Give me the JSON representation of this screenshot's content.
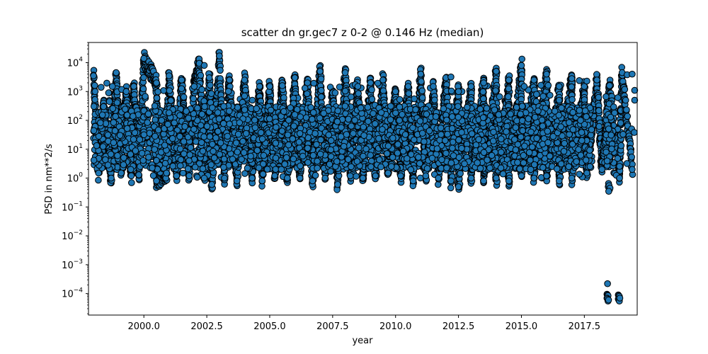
{
  "chart_data": {
    "type": "scatter",
    "title": "scatter dn gr.gec7 z 0-2 @ 0.146 Hz (median)",
    "xlabel": "year",
    "ylabel": "PSD in nm**2/s",
    "xlim": [
      1997.8,
      2019.6
    ],
    "ylim": [
      1.8e-05,
      50000
    ],
    "yscale": "log",
    "grid": false,
    "legend": "none",
    "x_ticks": [
      2000.0,
      2002.5,
      2005.0,
      2007.5,
      2010.0,
      2012.5,
      2015.0,
      2017.5
    ],
    "x_tick_labels": [
      "2000.0",
      "2002.5",
      "2005.0",
      "2007.5",
      "2010.0",
      "2012.5",
      "2015.0",
      "2017.5"
    ],
    "y_ticks": [
      0.0001,
      0.001,
      0.01,
      0.1,
      1,
      10,
      100,
      1000,
      10000
    ],
    "y_tick_labels": [
      {
        "base": "10",
        "exp": "−4"
      },
      {
        "base": "10",
        "exp": "−3"
      },
      {
        "base": "10",
        "exp": "−2"
      },
      {
        "base": "10",
        "exp": "−1"
      },
      {
        "base": "10",
        "exp": "0"
      },
      {
        "base": "10",
        "exp": "1"
      },
      {
        "base": "10",
        "exp": "2"
      },
      {
        "base": "10",
        "exp": "3"
      },
      {
        "base": "10",
        "exp": "4"
      }
    ],
    "marker_color": "#1f77b4",
    "marker_edge_color": "#000000",
    "series": [
      {
        "peaks": [
          [
            1998.0,
            3500
          ],
          [
            1998.4,
            300
          ],
          [
            1998.9,
            4500
          ],
          [
            1999.3,
            1000
          ],
          [
            1999.6,
            1500
          ],
          [
            2000.0,
            14000
          ],
          [
            2000.5,
            2000
          ],
          [
            2001.0,
            3500
          ],
          [
            2001.5,
            2500
          ],
          [
            2002.0,
            1500
          ],
          [
            2002.2,
            9500
          ],
          [
            2002.6,
            3000
          ],
          [
            2003.0,
            17000
          ],
          [
            2003.4,
            2500
          ],
          [
            2004.0,
            2500
          ],
          [
            2004.6,
            1500
          ],
          [
            2005.0,
            1500
          ],
          [
            2005.5,
            2000
          ],
          [
            2006.0,
            3000
          ],
          [
            2006.5,
            2000
          ],
          [
            2007.0,
            5000
          ],
          [
            2007.5,
            900
          ],
          [
            2008.0,
            4500
          ],
          [
            2008.5,
            1500
          ],
          [
            2009.0,
            2000
          ],
          [
            2009.5,
            2500
          ],
          [
            2010.0,
            1000
          ],
          [
            2010.5,
            1500
          ],
          [
            2011.0,
            4000
          ],
          [
            2011.5,
            1500
          ],
          [
            2012.0,
            3000
          ],
          [
            2012.5,
            1000
          ],
          [
            2013.0,
            1500
          ],
          [
            2013.5,
            2000
          ],
          [
            2014.0,
            5000
          ],
          [
            2014.5,
            2500
          ],
          [
            2015.0,
            8000
          ],
          [
            2015.5,
            2500
          ],
          [
            2016.0,
            4000
          ],
          [
            2016.5,
            1500
          ],
          [
            2017.0,
            3500
          ],
          [
            2017.5,
            1500
          ],
          [
            2018.0,
            2500
          ],
          [
            2018.5,
            1500
          ],
          [
            2019.0,
            4500
          ]
        ],
        "troughs": [
          [
            1998.2,
            1.5
          ],
          [
            1998.7,
            1.0
          ],
          [
            1999.1,
            1.5
          ],
          [
            1999.5,
            1.2
          ],
          [
            1999.8,
            1.3
          ],
          [
            2000.5,
            0.8
          ],
          [
            2000.9,
            1.5
          ],
          [
            2001.3,
            1.2
          ],
          [
            2001.8,
            1.2
          ],
          [
            2002.4,
            1.0
          ],
          [
            2002.7,
            0.6
          ],
          [
            2003.2,
            1.0
          ],
          [
            2003.7,
            0.8
          ],
          [
            2004.3,
            1.0
          ],
          [
            2004.7,
            0.8
          ],
          [
            2005.2,
            1.2
          ],
          [
            2005.7,
            1.0
          ],
          [
            2006.2,
            1.0
          ],
          [
            2006.7,
            0.8
          ],
          [
            2007.2,
            1.0
          ],
          [
            2007.7,
            0.6
          ],
          [
            2008.2,
            1.2
          ],
          [
            2008.7,
            1.0
          ],
          [
            2009.2,
            1.2
          ],
          [
            2009.7,
            1.5
          ],
          [
            2010.2,
            1.2
          ],
          [
            2010.7,
            0.8
          ],
          [
            2011.2,
            1.2
          ],
          [
            2011.7,
            1.0
          ],
          [
            2012.2,
            0.8
          ],
          [
            2012.5,
            0.5
          ],
          [
            2013.0,
            1.0
          ],
          [
            2013.5,
            0.8
          ],
          [
            2014.0,
            1.0
          ],
          [
            2014.5,
            0.8
          ],
          [
            2015.0,
            1.2
          ],
          [
            2015.5,
            1.0
          ],
          [
            2016.0,
            1.2
          ],
          [
            2016.5,
            0.8
          ],
          [
            2017.0,
            1.0
          ],
          [
            2017.6,
            1.5
          ],
          [
            2018.2,
            2.0
          ],
          [
            2018.9,
            1.0
          ],
          [
            2019.4,
            2.0
          ]
        ],
        "outliers": [
          [
            1998.3,
            1400
          ],
          [
            1998.6,
            900
          ],
          [
            2002.4,
            8000
          ],
          [
            2004.0,
            700
          ],
          [
            2005.5,
            1600
          ],
          [
            2006.4,
            1300
          ],
          [
            2007.6,
            900
          ],
          [
            2011.0,
            4000
          ],
          [
            2012.2,
            3200
          ],
          [
            2015.6,
            800
          ],
          [
            2016.5,
            500
          ],
          [
            2017.0,
            2800
          ],
          [
            2017.3,
            2400
          ],
          [
            2017.6,
            2300
          ],
          [
            2018.5,
            1600
          ],
          [
            2019.2,
            3800
          ],
          [
            2019.4,
            4000
          ],
          [
            2019.5,
            1100
          ],
          [
            2019.5,
            500
          ],
          [
            2017.4,
            20
          ]
        ],
        "low_cluster": [
          [
            2018.45,
            0.5
          ],
          [
            2018.46,
            0.65
          ],
          [
            2018.48,
            0.55
          ],
          [
            2018.5,
            0.4
          ],
          [
            2018.52,
            0.45
          ],
          [
            2018.47,
            0.35
          ]
        ],
        "tiny_cluster": [
          [
            2018.42,
            0.00022
          ],
          [
            2018.4,
            9.5e-05
          ],
          [
            2018.42,
            9e-05
          ],
          [
            2018.44,
            8.5e-05
          ],
          [
            2018.4,
            7e-05
          ],
          [
            2018.42,
            6.5e-05
          ],
          [
            2018.44,
            5.5e-05
          ],
          [
            2018.46,
            6e-05
          ],
          [
            2018.85,
            9e-05
          ],
          [
            2018.87,
            8.5e-05
          ],
          [
            2018.89,
            8e-05
          ],
          [
            2018.85,
            6.5e-05
          ],
          [
            2018.87,
            6e-05
          ],
          [
            2018.89,
            5.5e-05
          ],
          [
            2018.91,
            7e-05
          ]
        ]
      }
    ]
  }
}
